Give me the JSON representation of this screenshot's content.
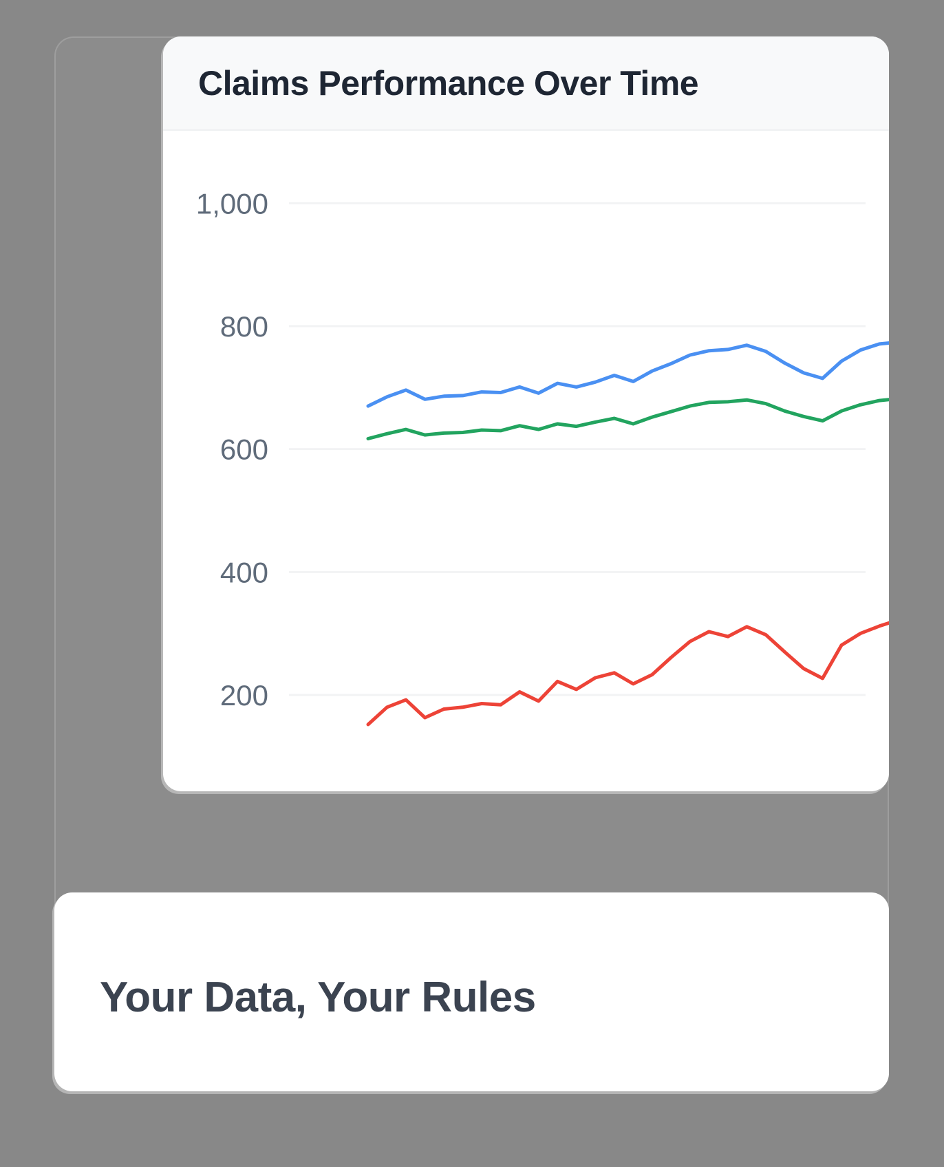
{
  "chart_card": {
    "title": "Claims Performance Over Time"
  },
  "bottom_card": {
    "headline": "Your Data, Your Rules"
  },
  "colors": {
    "page_background": "#888888",
    "card_background": "#ffffff",
    "chart_header_background": "#f8f9fa",
    "chart_title_color": "#1e2633",
    "axis_label_color": "#5f6b7a",
    "gridline_color": "#f2f3f4",
    "headline_color": "#3b4350",
    "series_blue": "#4a90f2",
    "series_green": "#22a45f",
    "series_red": "#ed4337"
  },
  "chart_data": {
    "type": "line",
    "title": "Claims Performance Over Time",
    "xlabel": "",
    "ylabel": "",
    "x_axis_labels_visible": false,
    "x_note": "29 evenly spaced points; lines begin inset from the left of the plot area and are clipped by the card's right edge",
    "y_ticks": [
      200,
      400,
      600,
      800,
      1000
    ],
    "y_tick_labels": [
      "200",
      "400",
      "600",
      "800",
      "1,000"
    ],
    "grid": "horizontal gridlines only",
    "legend": "none visible",
    "series": [
      {
        "name": "series-blue",
        "color": "#4a90f2",
        "values": [
          670,
          685,
          696,
          681,
          686,
          687,
          693,
          692,
          701,
          691,
          707,
          701,
          709,
          720,
          710,
          727,
          739,
          753,
          760,
          762,
          769,
          759,
          740,
          724,
          715,
          743,
          761,
          771,
          774
        ]
      },
      {
        "name": "series-green",
        "color": "#22a45f",
        "values": [
          617,
          625,
          632,
          623,
          626,
          627,
          631,
          630,
          638,
          632,
          641,
          637,
          644,
          650,
          641,
          652,
          661,
          670,
          676,
          677,
          680,
          674,
          662,
          653,
          646,
          662,
          672,
          679,
          682
        ]
      },
      {
        "name": "series-red",
        "color": "#ed4337",
        "values": [
          152,
          180,
          192,
          163,
          177,
          180,
          186,
          184,
          205,
          190,
          222,
          209,
          228,
          236,
          218,
          233,
          261,
          287,
          303,
          295,
          311,
          298,
          270,
          243,
          227,
          281,
          300,
          312,
          322
        ]
      }
    ]
  }
}
